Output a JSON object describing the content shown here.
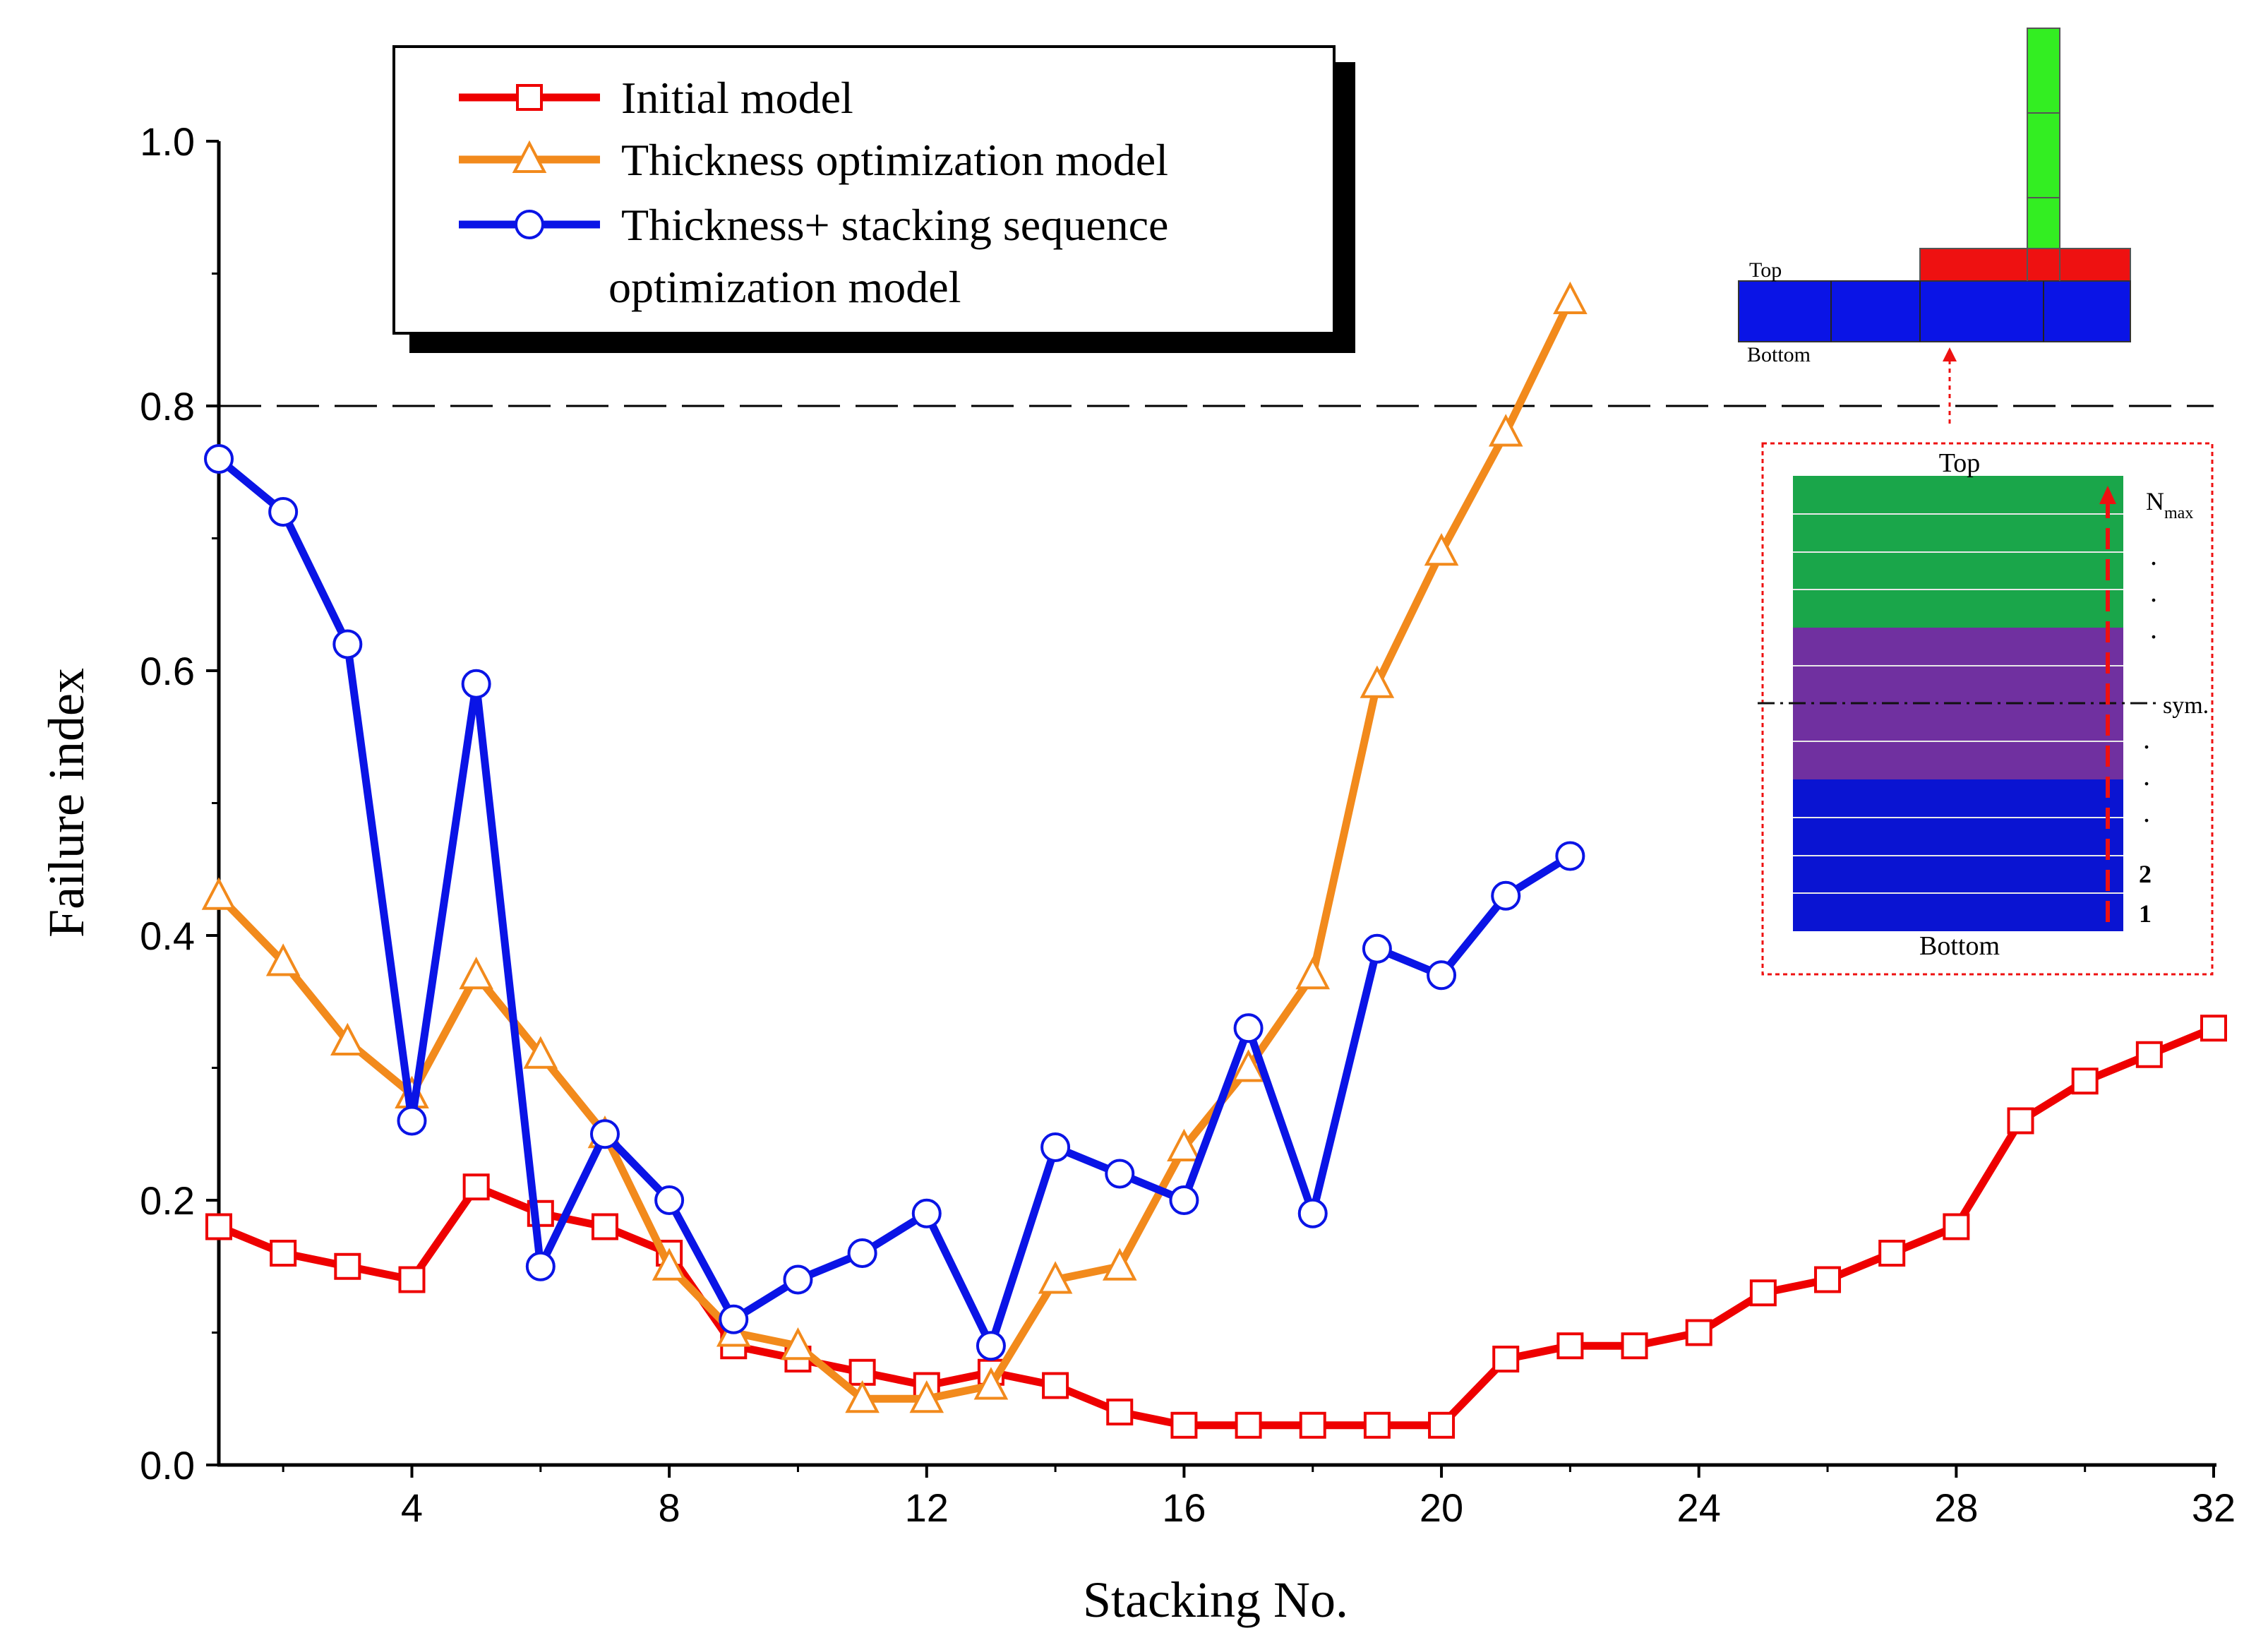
{
  "chart_data": {
    "type": "line",
    "title": "",
    "xlabel": "Stacking No.",
    "ylabel": "Failure index",
    "xlim": [
      1,
      32
    ],
    "ylim": [
      0.0,
      1.0
    ],
    "x_ticks": [
      4,
      8,
      12,
      16,
      20,
      24,
      28,
      32
    ],
    "x_tick_labels": [
      "4",
      "8",
      "12",
      "16",
      "20",
      "24",
      "28",
      "32"
    ],
    "y_ticks": [
      0.0,
      0.2,
      0.4,
      0.6,
      0.8,
      1.0
    ],
    "y_tick_labels": [
      "0.0",
      "0.2",
      "0.4",
      "0.6",
      "0.8",
      "1.0"
    ],
    "reference_line": {
      "y": 0.8,
      "style": "dashed"
    },
    "legend_position": "top-left",
    "series": [
      {
        "name": "Initial model",
        "color": "#ee0000",
        "marker": "square",
        "x": [
          1,
          2,
          3,
          4,
          5,
          6,
          7,
          8,
          9,
          10,
          11,
          12,
          13,
          14,
          15,
          16,
          17,
          18,
          19,
          20,
          21,
          22,
          23,
          24,
          25,
          26,
          27,
          28,
          29,
          30,
          31,
          32
        ],
        "values": [
          0.18,
          0.16,
          0.15,
          0.14,
          0.21,
          0.19,
          0.18,
          0.16,
          0.09,
          0.08,
          0.07,
          0.06,
          0.07,
          0.06,
          0.04,
          0.03,
          0.03,
          0.03,
          0.03,
          0.03,
          0.08,
          0.09,
          0.09,
          0.1,
          0.13,
          0.14,
          0.16,
          0.18,
          0.26,
          0.29,
          0.31,
          0.33
        ]
      },
      {
        "name": "Thickness optimization model",
        "color": "#f28a1c",
        "marker": "triangle",
        "x": [
          1,
          2,
          3,
          4,
          5,
          6,
          7,
          8,
          9,
          10,
          11,
          12,
          13,
          14,
          15,
          16,
          17,
          18,
          19,
          20,
          21,
          22
        ],
        "values": [
          0.43,
          0.38,
          0.32,
          0.28,
          0.37,
          0.31,
          0.25,
          0.15,
          0.1,
          0.09,
          0.05,
          0.05,
          0.06,
          0.14,
          0.15,
          0.24,
          0.3,
          0.37,
          0.59,
          0.69,
          0.78,
          0.88
        ]
      },
      {
        "name": "Thickness+ stacking sequence optimization model",
        "legend_lines": [
          "Thickness+ stacking sequence",
          "optimization model"
        ],
        "color": "#0a14e6",
        "marker": "circle",
        "x": [
          1,
          2,
          3,
          4,
          5,
          6,
          7,
          8,
          9,
          10,
          11,
          12,
          13,
          14,
          15,
          16,
          17,
          18,
          19,
          20,
          21,
          22
        ],
        "values": [
          0.76,
          0.72,
          0.62,
          0.26,
          0.59,
          0.15,
          0.25,
          0.2,
          0.11,
          0.14,
          0.16,
          0.19,
          0.09,
          0.24,
          0.22,
          0.2,
          0.33,
          0.19,
          0.39,
          0.37,
          0.43,
          0.46
        ]
      }
    ],
    "inset": {
      "upper": {
        "top_label": "Top",
        "bottom_label": "Bottom"
      },
      "lower": {
        "top_label": "Top",
        "bottom_label": "Bottom",
        "layer_labels": [
          "N",
          "max",
          "sym.",
          "2",
          "1"
        ],
        "dots": ".",
        "colors": {
          "green": "#1aa64a",
          "purple": "#7030a0",
          "blue": "#0a14d2",
          "red": "#ee1111",
          "bright_green": "#33ee22"
        }
      }
    }
  }
}
